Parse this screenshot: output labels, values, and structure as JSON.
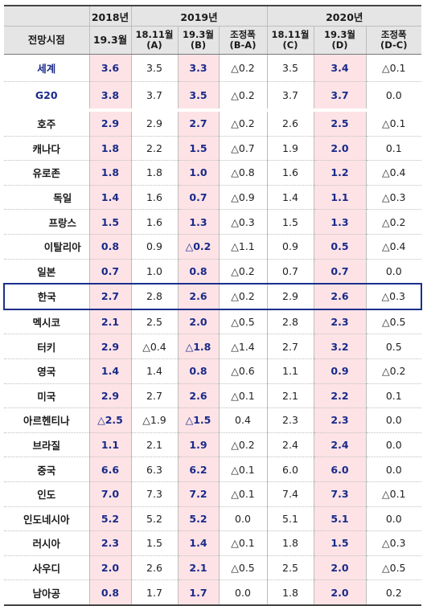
{
  "header": {
    "year_2018": "2018년",
    "year_2019": "2019년",
    "year_2020": "2020년",
    "label": "전망시점",
    "c2018": "19.3월",
    "c2019a": "18.11월\n(A)",
    "c2019b": "19.3월\n(B)",
    "c2019adj": "조정폭\n(B-A)",
    "c2020c": "18.11월\n(C)",
    "c2020d": "19.3월\n(D)",
    "c2020adj": "조정폭\n(D-C)"
  },
  "rows": [
    {
      "name": "세계",
      "values": [
        "3.6",
        "3.5",
        "3.3",
        "△0.2",
        "3.5",
        "3.4",
        "△0.1"
      ]
    },
    {
      "name": "G20",
      "values": [
        "3.8",
        "3.7",
        "3.5",
        "△0.2",
        "3.7",
        "3.7",
        "0.0"
      ]
    },
    {
      "name": "호주",
      "values": [
        "2.9",
        "2.9",
        "2.7",
        "△0.2",
        "2.6",
        "2.5",
        "△0.1"
      ]
    },
    {
      "name": "캐나다",
      "values": [
        "1.8",
        "2.2",
        "1.5",
        "△0.7",
        "1.9",
        "2.0",
        "0.1"
      ]
    },
    {
      "name": "유로존",
      "values": [
        "1.8",
        "1.8",
        "1.0",
        "△0.8",
        "1.6",
        "1.2",
        "△0.4"
      ]
    },
    {
      "name": "독일",
      "values": [
        "1.4",
        "1.6",
        "0.7",
        "△0.9",
        "1.4",
        "1.1",
        "△0.3"
      ]
    },
    {
      "name": "프랑스",
      "values": [
        "1.5",
        "1.6",
        "1.3",
        "△0.3",
        "1.5",
        "1.3",
        "△0.2"
      ]
    },
    {
      "name": "이탈리아",
      "values": [
        "0.8",
        "0.9",
        "△0.2",
        "△1.1",
        "0.9",
        "0.5",
        "△0.4"
      ]
    },
    {
      "name": "일본",
      "values": [
        "0.7",
        "1.0",
        "0.8",
        "△0.2",
        "0.7",
        "0.7",
        "0.0"
      ]
    },
    {
      "name": "한국",
      "values": [
        "2.7",
        "2.8",
        "2.6",
        "△0.2",
        "2.9",
        "2.6",
        "△0.3"
      ]
    },
    {
      "name": "멕시코",
      "values": [
        "2.1",
        "2.5",
        "2.0",
        "△0.5",
        "2.8",
        "2.3",
        "△0.5"
      ]
    },
    {
      "name": "터키",
      "values": [
        "2.9",
        "△0.4",
        "△1.8",
        "△1.4",
        "2.7",
        "3.2",
        "0.5"
      ]
    },
    {
      "name": "영국",
      "values": [
        "1.4",
        "1.4",
        "0.8",
        "△0.6",
        "1.1",
        "0.9",
        "△0.2"
      ]
    },
    {
      "name": "미국",
      "values": [
        "2.9",
        "2.7",
        "2.6",
        "△0.1",
        "2.1",
        "2.2",
        "0.1"
      ]
    },
    {
      "name": "아르헨티나",
      "values": [
        "△2.5",
        "△1.9",
        "△1.5",
        "0.4",
        "2.3",
        "2.3",
        "0.0"
      ]
    },
    {
      "name": "브라질",
      "values": [
        "1.1",
        "2.1",
        "1.9",
        "△0.2",
        "2.4",
        "2.4",
        "0.0"
      ]
    },
    {
      "name": "중국",
      "values": [
        "6.6",
        "6.3",
        "6.2",
        "△0.1",
        "6.0",
        "6.0",
        "0.0"
      ]
    },
    {
      "name": "인도",
      "values": [
        "7.0",
        "7.3",
        "7.2",
        "△0.1",
        "7.4",
        "7.3",
        "△0.1"
      ]
    },
    {
      "name": "인도네시아",
      "values": [
        "5.2",
        "5.2",
        "5.2",
        "0.0",
        "5.1",
        "5.1",
        "0.0"
      ]
    },
    {
      "name": "러시아",
      "values": [
        "2.3",
        "1.5",
        "1.4",
        "△0.1",
        "1.8",
        "1.5",
        "△0.3"
      ]
    },
    {
      "name": "사우디",
      "values": [
        "2.0",
        "2.6",
        "2.1",
        "△0.5",
        "2.5",
        "2.0",
        "△0.5"
      ]
    },
    {
      "name": "남아공",
      "values": [
        "0.8",
        "1.7",
        "1.7",
        "0.0",
        "1.8",
        "2.0",
        "0.2"
      ]
    }
  ]
}
